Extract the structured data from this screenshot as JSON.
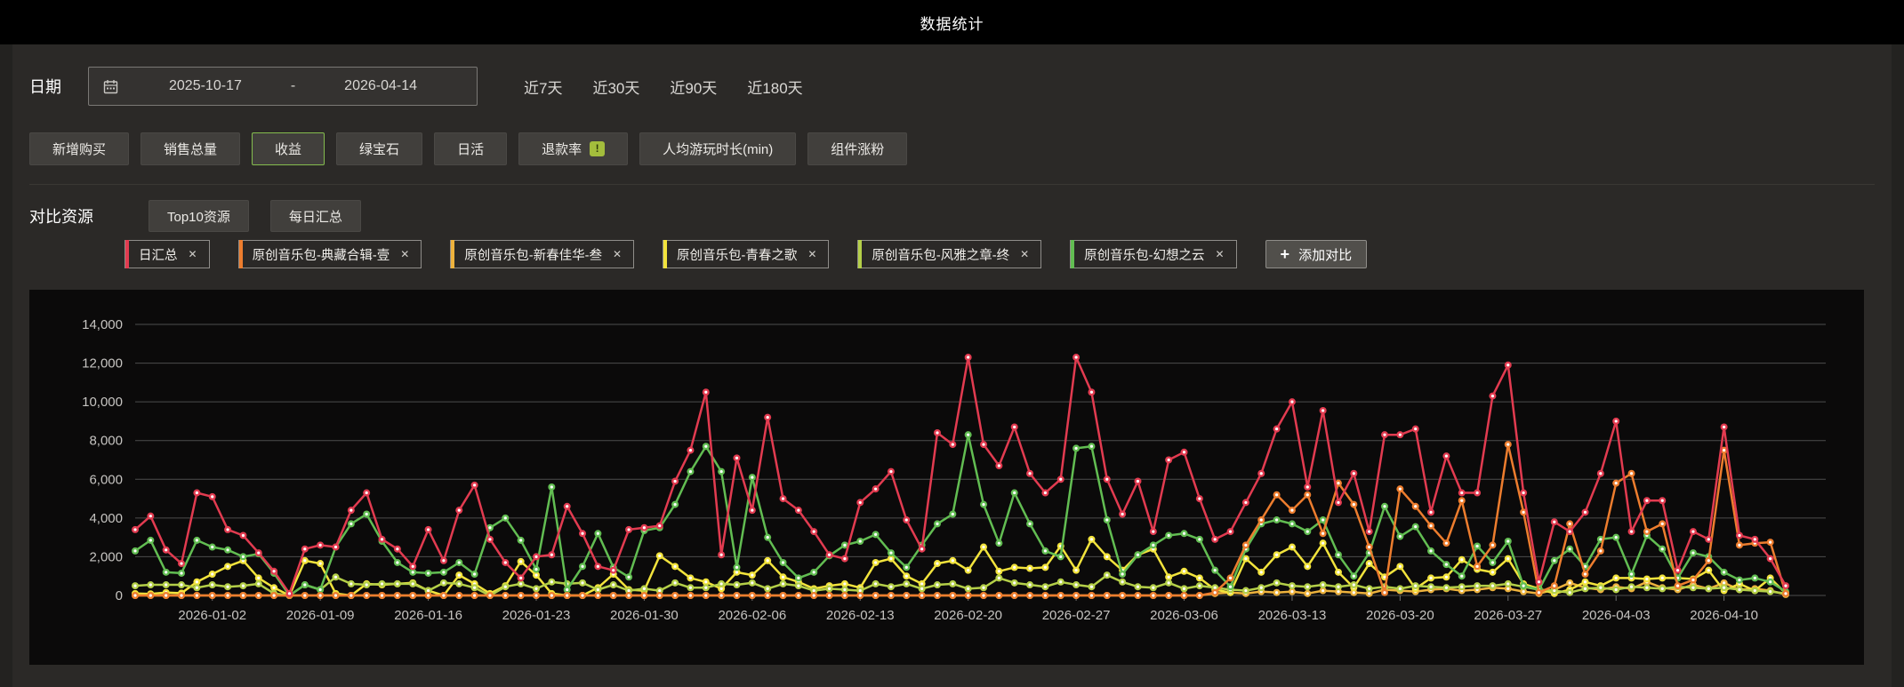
{
  "header": {
    "title": "数据统计"
  },
  "filters": {
    "date_label": "日期",
    "date_start": "2025-10-17",
    "date_separator": "-",
    "date_end": "2026-04-14",
    "quick_ranges": [
      "近7天",
      "近30天",
      "近90天",
      "近180天"
    ],
    "metrics": [
      {
        "label": "新增购买",
        "selected": false
      },
      {
        "label": "销售总量",
        "selected": false
      },
      {
        "label": "收益",
        "selected": true
      },
      {
        "label": "绿宝石",
        "selected": false
      },
      {
        "label": "日活",
        "selected": false
      },
      {
        "label": "退款率",
        "selected": false,
        "badge": "!"
      },
      {
        "label": "人均游玩时长(min)",
        "selected": false
      },
      {
        "label": "组件涨粉",
        "selected": false
      }
    ],
    "compare_label": "对比资源",
    "compare_modes": [
      "Top10资源",
      "每日汇总"
    ],
    "tags": [
      {
        "label": "日汇总",
        "color": "#e23b50"
      },
      {
        "label": "原创音乐包-典藏合辑-壹",
        "color": "#ed7d2e"
      },
      {
        "label": "原创音乐包-新春佳华-叁",
        "color": "#edb23d"
      },
      {
        "label": "原创音乐包-青春之歌",
        "color": "#f2e33c"
      },
      {
        "label": "原创音乐包-风雅之章-终",
        "color": "#b4cf48"
      },
      {
        "label": "原创音乐包-幻想之云",
        "color": "#62bd52"
      }
    ],
    "add_compare_icon": "+",
    "add_compare_label": "添加对比"
  },
  "chart_data": {
    "type": "line",
    "title": "",
    "interval": "daily",
    "start_date": "2025-12-28",
    "x_tick_labels": [
      "2026-01-02",
      "2026-01-09",
      "2026-01-16",
      "2026-01-23",
      "2026-01-30",
      "2026-02-06",
      "2026-02-13",
      "2026-02-20",
      "2026-02-27",
      "2026-03-06",
      "2026-03-13",
      "2026-03-20",
      "2026-03-27",
      "2026-04-03",
      "2026-04-10"
    ],
    "x_tick_indices": [
      5,
      12,
      19,
      26,
      33,
      40,
      47,
      54,
      61,
      68,
      75,
      82,
      89,
      96,
      103
    ],
    "ylim": [
      0,
      14000
    ],
    "y_ticks": [
      0,
      2000,
      4000,
      6000,
      8000,
      10000,
      12000,
      14000
    ],
    "grid": true,
    "legend": "none",
    "series": [
      {
        "name": "日汇总",
        "color": "#e23b50",
        "values": [
          3400,
          4100,
          2350,
          1650,
          5300,
          5100,
          3400,
          3100,
          2200,
          1250,
          100,
          2400,
          2600,
          2500,
          4400,
          5300,
          2900,
          2400,
          1500,
          3400,
          1800,
          4400,
          5700,
          2900,
          1700,
          900,
          2000,
          2100,
          4600,
          3200,
          1500,
          1300,
          3400,
          3500,
          3600,
          5900,
          7500,
          10500,
          2100,
          7100,
          4400,
          9200,
          5000,
          4400,
          3300,
          2100,
          1900,
          4800,
          5500,
          6400,
          3900,
          2400,
          8400,
          7800,
          12300,
          7800,
          6700,
          8700,
          6300,
          5300,
          6000,
          12300,
          10500,
          6000,
          4200,
          5900,
          3300,
          7000,
          7400,
          5000,
          2900,
          3300,
          4800,
          6300,
          8600,
          10000,
          5600,
          9550,
          4800,
          6300,
          3300,
          8300,
          8300,
          8600,
          4300,
          7200,
          5300,
          5300,
          10300,
          11900,
          5300,
          700,
          3800,
          3300,
          4300,
          6300,
          9000,
          3300,
          4900,
          4900,
          1300,
          3300,
          2900,
          8700,
          3100,
          2900,
          1900,
          500
        ]
      },
      {
        "name": "原创音乐包-典藏合辑-壹",
        "color": "#ed7d2e",
        "values": [
          0,
          0,
          0,
          0,
          0,
          0,
          0,
          0,
          0,
          0,
          0,
          0,
          0,
          0,
          0,
          0,
          0,
          0,
          0,
          0,
          0,
          0,
          0,
          0,
          0,
          0,
          0,
          0,
          0,
          0,
          0,
          0,
          0,
          0,
          0,
          0,
          0,
          0,
          0,
          0,
          0,
          0,
          0,
          0,
          0,
          0,
          0,
          0,
          0,
          0,
          0,
          0,
          0,
          0,
          0,
          0,
          0,
          0,
          0,
          0,
          0,
          0,
          0,
          0,
          0,
          0,
          0,
          0,
          0,
          0,
          150,
          900,
          2600,
          3900,
          5200,
          4400,
          5200,
          3200,
          5800,
          4700,
          2500,
          150,
          5500,
          4600,
          3600,
          2700,
          4900,
          1500,
          2600,
          7800,
          4300,
          150,
          500,
          3700,
          1100,
          2300,
          5800,
          6300,
          3300,
          3700,
          500,
          800,
          1800,
          7500,
          2600,
          2700,
          2750,
          100
        ]
      },
      {
        "name": "原创音乐包-新春佳华-叁",
        "color": "#edb23d",
        "values": [
          0,
          0,
          0,
          0,
          0,
          0,
          0,
          0,
          0,
          0,
          0,
          0,
          0,
          0,
          0,
          0,
          0,
          0,
          0,
          0,
          0,
          0,
          0,
          0,
          0,
          0,
          0,
          0,
          0,
          0,
          0,
          0,
          0,
          0,
          0,
          0,
          0,
          0,
          0,
          0,
          0,
          0,
          0,
          0,
          0,
          0,
          0,
          0,
          0,
          0,
          0,
          0,
          0,
          0,
          0,
          0,
          0,
          0,
          0,
          0,
          0,
          0,
          0,
          0,
          0,
          0,
          0,
          0,
          0,
          0,
          100,
          150,
          100,
          200,
          150,
          200,
          100,
          250,
          200,
          150,
          100,
          300,
          250,
          200,
          300,
          350,
          250,
          300,
          400,
          350,
          200,
          100,
          300,
          650,
          400,
          300,
          450,
          350,
          700,
          400,
          300,
          550,
          350,
          650,
          300,
          350,
          250,
          50
        ]
      },
      {
        "name": "原创音乐包-青春之歌",
        "color": "#f2e33c",
        "values": [
          100,
          80,
          150,
          120,
          700,
          1100,
          1500,
          1800,
          900,
          400,
          0,
          1800,
          1650,
          100,
          0,
          600,
          550,
          600,
          650,
          250,
          0,
          1050,
          600,
          100,
          500,
          1750,
          1050,
          100,
          0,
          0,
          400,
          1100,
          300,
          250,
          2050,
          1500,
          900,
          700,
          350,
          1200,
          1050,
          1800,
          950,
          700,
          350,
          500,
          600,
          400,
          1700,
          1900,
          1000,
          600,
          1650,
          1800,
          1300,
          2500,
          1250,
          1450,
          1400,
          1450,
          2550,
          1300,
          2900,
          2000,
          1300,
          2100,
          2400,
          950,
          1250,
          900,
          300,
          150,
          1900,
          1200,
          2100,
          2500,
          1500,
          2700,
          1200,
          400,
          1650,
          950,
          1500,
          350,
          900,
          950,
          1850,
          1350,
          1200,
          1900,
          600,
          350,
          100,
          300,
          700,
          500,
          900,
          900,
          850,
          900,
          900,
          850,
          1300,
          250,
          600,
          250,
          900,
          100
        ]
      },
      {
        "name": "原创音乐包-风雅之章-终",
        "color": "#b4cf48",
        "values": [
          500,
          550,
          550,
          550,
          400,
          550,
          450,
          500,
          600,
          100,
          0,
          550,
          300,
          950,
          600,
          550,
          600,
          600,
          600,
          250,
          650,
          600,
          400,
          0,
          450,
          600,
          350,
          700,
          600,
          650,
          300,
          550,
          250,
          350,
          250,
          650,
          400,
          400,
          600,
          550,
          650,
          350,
          600,
          500,
          250,
          350,
          300,
          250,
          600,
          450,
          600,
          350,
          550,
          600,
          350,
          400,
          900,
          650,
          550,
          450,
          700,
          550,
          450,
          1050,
          700,
          450,
          400,
          650,
          350,
          500,
          400,
          300,
          250,
          400,
          650,
          500,
          450,
          550,
          450,
          550,
          350,
          450,
          350,
          500,
          450,
          400,
          450,
          500,
          500,
          600,
          450,
          300,
          250,
          150,
          350,
          400,
          300,
          450,
          400,
          350,
          450,
          400,
          350,
          400,
          300,
          250,
          200,
          100
        ]
      },
      {
        "name": "原创音乐包-幻想之云",
        "color": "#62bd52",
        "values": [
          2300,
          2850,
          1200,
          1150,
          2850,
          2500,
          2350,
          2000,
          2150,
          1150,
          0,
          550,
          300,
          2500,
          3700,
          4200,
          2800,
          1700,
          1200,
          1150,
          1200,
          1700,
          1100,
          3500,
          4000,
          2850,
          1350,
          5600,
          300,
          1500,
          3200,
          1450,
          950,
          3350,
          3500,
          4700,
          6400,
          7700,
          6400,
          1450,
          6100,
          3000,
          1700,
          900,
          1200,
          2050,
          2600,
          2800,
          3150,
          2200,
          1450,
          2600,
          3700,
          4200,
          8300,
          4700,
          2700,
          5300,
          3700,
          2300,
          2000,
          7600,
          7700,
          3900,
          1100,
          2100,
          2600,
          3100,
          3200,
          2900,
          1300,
          450,
          2400,
          3700,
          3900,
          3700,
          3300,
          3900,
          2100,
          1000,
          2200,
          4600,
          3050,
          3550,
          2300,
          1600,
          1000,
          2550,
          1700,
          2800,
          500,
          300,
          1800,
          2400,
          1500,
          2900,
          3000,
          1100,
          3100,
          2400,
          900,
          2200,
          2000,
          1200,
          800,
          900,
          700,
          200
        ]
      }
    ]
  }
}
